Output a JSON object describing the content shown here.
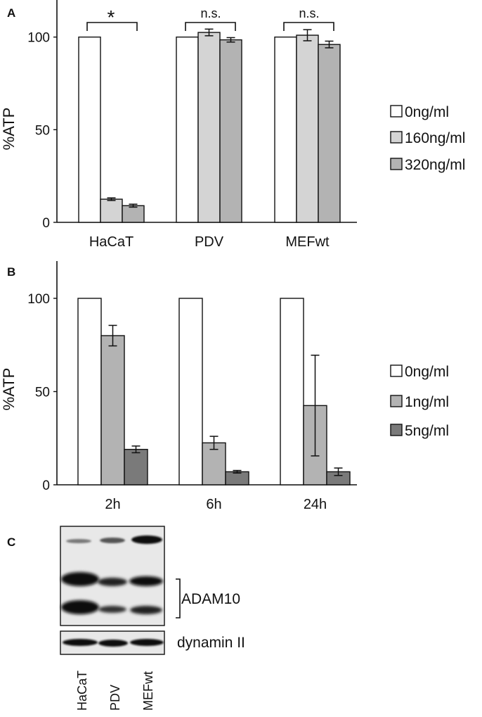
{
  "colors": {
    "bar_0ng": "#ffffff",
    "bar_light": "#d4d4d4",
    "bar_mid": "#b3b3b3",
    "bar_dark": "#7a7a7a",
    "axis": "#111111"
  },
  "chart_data": [
    {
      "panel": "A",
      "type": "bar",
      "ylabel": "%ATP",
      "ylim": [
        0,
        120
      ],
      "yticks": [
        "0",
        "50",
        "100"
      ],
      "categories": [
        "HaCaT",
        "PDV",
        "MEFwt"
      ],
      "series": [
        {
          "name": "0ng/ml",
          "values": [
            100,
            100,
            100
          ],
          "errors": [
            0,
            0,
            0
          ]
        },
        {
          "name": "160ng/ml",
          "values": [
            12.5,
            102.5,
            101
          ],
          "errors": [
            0.7,
            1.8,
            3
          ]
        },
        {
          "name": "320ng/ml",
          "values": [
            9,
            98.5,
            96
          ],
          "errors": [
            0.8,
            1.2,
            1.8
          ]
        }
      ],
      "annotations": [
        "*",
        "n.s.",
        "n.s."
      ],
      "legend": "right"
    },
    {
      "panel": "B",
      "type": "bar",
      "ylabel": "%ATP",
      "ylim": [
        0,
        120
      ],
      "yticks": [
        "0",
        "50",
        "100"
      ],
      "categories": [
        "2h",
        "6h",
        "24h"
      ],
      "series": [
        {
          "name": "0ng/ml",
          "values": [
            100,
            100,
            100
          ],
          "errors": [
            0,
            0,
            0
          ]
        },
        {
          "name": "1ng/ml",
          "values": [
            80,
            22.5,
            42.5
          ],
          "errors": [
            5.5,
            3.5,
            27
          ]
        },
        {
          "name": "5ng/ml",
          "values": [
            19,
            7,
            7
          ],
          "errors": [
            1.8,
            0.7,
            2
          ]
        }
      ],
      "legend": "right"
    }
  ],
  "blot": {
    "panel": "C",
    "labels": [
      "ADAM10",
      "dynamin II"
    ],
    "lanes": [
      "HaCaT",
      "PDV",
      "MEFwt"
    ]
  }
}
